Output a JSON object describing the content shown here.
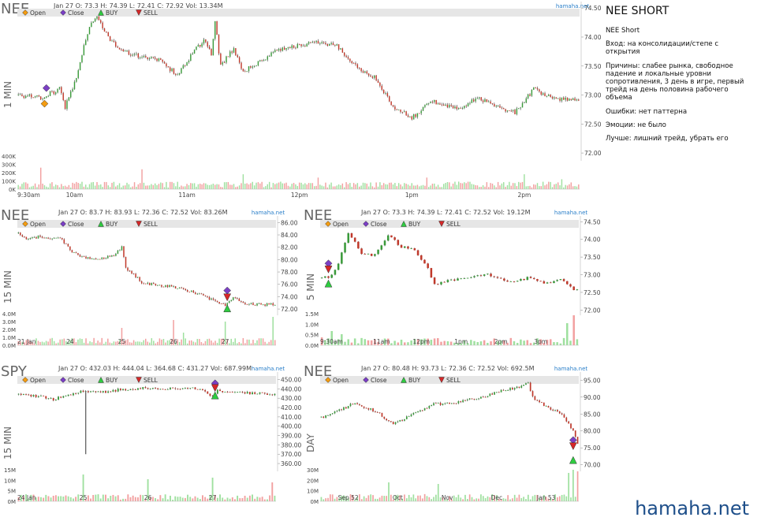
{
  "watermark": "hamaha.net",
  "notes": {
    "title": "NEE SHORT",
    "subtitle": "NEE Short",
    "entry": "Вход:  на консолидации/степе с открытия",
    "reasons": "Причины: слабее рынка, свободное падение и локальные уровни сопротивления, 3 день в игре, первый трейд на день половина рабочего объема",
    "errors": "Ошибки:  нет паттерна",
    "emotions": "Эмоции: не было",
    "better": "Лучше: лишний трейд, убрать его"
  },
  "colors": {
    "up": "#3a9a3a",
    "down": "#c0392b",
    "wick": "#333333",
    "vol_up": "#9fe09f",
    "vol_down": "#f2a0a0",
    "legend_bg": "#e6e6e6",
    "brand": "#2a7fc9",
    "open": "#f39c12",
    "close": "#7b3fc4",
    "buy": "#2ecc40",
    "sell": "#d62728"
  },
  "chart_data": [
    {
      "id": "nee-1min",
      "type": "candlestick",
      "symbol": "NEE",
      "timeframe": "1 MIN",
      "info": "Jan 27 O: 73.3 H: 74.39 L: 72.41 C: 72.92    Vol: 13.34M",
      "brand": "hamaha.net",
      "legend": [
        "Open",
        "Close",
        "BUY",
        "SELL"
      ],
      "y_ticks": [
        "74.50",
        "74.00",
        "73.50",
        "73.00",
        "72.50",
        "72.00"
      ],
      "ylim": [
        71.92,
        74.53
      ],
      "vol_ticks": [
        "400K",
        "300K",
        "200K",
        "100K",
        "0K"
      ],
      "vol_max": 400000,
      "x_ticks": [
        [
          "9:30am",
          0
        ],
        [
          "10am",
          30
        ],
        [
          "11am",
          90
        ],
        [
          "12pm",
          150
        ],
        [
          "1pm",
          210
        ],
        [
          "2pm",
          270
        ]
      ],
      "n": 300,
      "path": [
        [
          0,
          73.0
        ],
        [
          12,
          72.95
        ],
        [
          22,
          73.1
        ],
        [
          25,
          72.8
        ],
        [
          30,
          73.2
        ],
        [
          38,
          74.2
        ],
        [
          42,
          74.35
        ],
        [
          50,
          73.9
        ],
        [
          60,
          73.7
        ],
        [
          75,
          73.6
        ],
        [
          85,
          73.35
        ],
        [
          95,
          73.8
        ],
        [
          100,
          73.95
        ],
        [
          103,
          73.7
        ],
        [
          105,
          74.25
        ],
        [
          108,
          73.5
        ],
        [
          115,
          73.8
        ],
        [
          120,
          73.4
        ],
        [
          130,
          73.6
        ],
        [
          140,
          73.8
        ],
        [
          160,
          73.9
        ],
        [
          170,
          73.85
        ],
        [
          180,
          73.5
        ],
        [
          190,
          73.3
        ],
        [
          200,
          72.8
        ],
        [
          210,
          72.6
        ],
        [
          220,
          72.9
        ],
        [
          235,
          72.75
        ],
        [
          245,
          72.95
        ],
        [
          255,
          72.8
        ],
        [
          265,
          72.7
        ],
        [
          275,
          73.1
        ],
        [
          285,
          72.95
        ],
        [
          300,
          72.9
        ]
      ],
      "vol_spikes": [
        [
          12,
          0.65
        ],
        [
          66,
          0.6
        ],
        [
          120,
          0.45
        ],
        [
          160,
          0.35
        ],
        [
          218,
          0.35
        ],
        [
          270,
          0.45
        ],
        [
          290,
          0.3
        ]
      ],
      "markers": [
        {
          "type": "Close",
          "i": 15,
          "y": 73.12
        },
        {
          "type": "Open",
          "i": 14,
          "y": 72.85
        }
      ]
    },
    {
      "id": "nee-15min",
      "type": "candlestick",
      "symbol": "NEE",
      "timeframe": "15 MIN",
      "info": "Jan 27 O: 83.7 H: 83.93 L: 72.36 C: 72.52    Vol: 83.26M",
      "brand": "hamaha.net",
      "legend": [
        "Open",
        "Close",
        "BUY",
        "SELL"
      ],
      "y_ticks": [
        "86.00",
        "84.00",
        "82.00",
        "80.00",
        "78.00",
        "76.00",
        "74.00",
        "72.00"
      ],
      "ylim": [
        71.5,
        86.3
      ],
      "vol_ticks": [
        "4.0M",
        "3.0M",
        "2.0M",
        "1.0M",
        "0.0M"
      ],
      "vol_max": 4000000,
      "x_ticks": [
        [
          "21 Jan",
          0
        ],
        [
          "24",
          26
        ],
        [
          "25",
          52
        ],
        [
          "26",
          78
        ],
        [
          "27",
          104
        ]
      ],
      "n": 130,
      "path": [
        [
          0,
          84.3
        ],
        [
          5,
          83.2
        ],
        [
          10,
          83.7
        ],
        [
          22,
          83.3
        ],
        [
          26,
          81.5
        ],
        [
          32,
          80.4
        ],
        [
          40,
          80.2
        ],
        [
          48,
          80.6
        ],
        [
          52,
          82.0
        ],
        [
          54,
          78.5
        ],
        [
          60,
          77.0
        ],
        [
          62,
          76.2
        ],
        [
          78,
          75.6
        ],
        [
          90,
          74.5
        ],
        [
          100,
          73.2
        ],
        [
          104,
          72.6
        ],
        [
          108,
          74.0
        ],
        [
          115,
          72.8
        ],
        [
          130,
          72.7
        ]
      ],
      "vol_spikes": [
        [
          52,
          0.55
        ],
        [
          78,
          0.8
        ],
        [
          104,
          0.75
        ],
        [
          128,
          0.9
        ],
        [
          83,
          0.4
        ]
      ],
      "markers": [
        {
          "type": "Close",
          "i": 105,
          "y": 75.0
        },
        {
          "type": "SELL",
          "i": 105,
          "y": 73.9
        },
        {
          "type": "BUY",
          "i": 105,
          "y": 72.1
        }
      ]
    },
    {
      "id": "nee-5min",
      "type": "candlestick",
      "symbol": "NEE",
      "timeframe": "5 MIN",
      "info": "Jan 27 O: 73.3 H: 74.39 L: 72.41 C: 72.52    Vol: 19.12M",
      "brand": "hamaha.net",
      "legend": [
        "Open",
        "Close",
        "BUY",
        "SELL"
      ],
      "y_ticks": [
        "74.50",
        "74.00",
        "73.50",
        "73.00",
        "72.50",
        "72.00"
      ],
      "ylim": [
        71.94,
        74.53
      ],
      "vol_ticks": [
        "1.5M",
        "1.0M",
        "0.5M",
        "0.0M"
      ],
      "vol_max": 1500000,
      "x_ticks": [
        [
          "9:30am",
          0
        ],
        [
          "11am",
          18
        ],
        [
          "12pm",
          30
        ],
        [
          "1pm",
          42
        ],
        [
          "2pm",
          54
        ],
        [
          "3pm",
          66
        ]
      ],
      "n": 78,
      "path": [
        [
          0,
          72.9
        ],
        [
          2,
          72.95
        ],
        [
          4,
          73.1
        ],
        [
          6,
          73.6
        ],
        [
          8,
          74.2
        ],
        [
          12,
          73.6
        ],
        [
          16,
          73.55
        ],
        [
          20,
          74.1
        ],
        [
          24,
          73.8
        ],
        [
          28,
          73.7
        ],
        [
          32,
          73.2
        ],
        [
          34,
          72.7
        ],
        [
          38,
          72.85
        ],
        [
          44,
          72.9
        ],
        [
          50,
          73.0
        ],
        [
          56,
          72.8
        ],
        [
          62,
          72.9
        ],
        [
          68,
          72.75
        ],
        [
          72,
          72.9
        ],
        [
          76,
          72.6
        ]
      ],
      "vol_spikes": [
        [
          0,
          0.25
        ],
        [
          3,
          0.45
        ],
        [
          6,
          0.35
        ],
        [
          74,
          0.7
        ],
        [
          76,
          0.95
        ]
      ],
      "markers": [
        {
          "type": "Close",
          "i": 2,
          "y": 73.32
        },
        {
          "type": "SELL",
          "i": 2,
          "y": 73.15
        },
        {
          "type": "BUY",
          "i": 2,
          "y": 72.75
        }
      ]
    },
    {
      "id": "spy-15min",
      "type": "candlestick",
      "symbol": "SPY",
      "timeframe": "15 MIN",
      "info": "Jan 27 O: 432.03 H: 444.04 L: 364.68 C: 431.27    Vol: 687.99M",
      "brand": "hamaha.net",
      "legend": [
        "Open",
        "Close",
        "BUY",
        "SELL"
      ],
      "y_ticks": [
        "450.00",
        "440.00",
        "430.00",
        "420.00",
        "410.00",
        "400.00",
        "390.00",
        "380.00",
        "370.00",
        "360.00"
      ],
      "ylim": [
        355,
        453
      ],
      "vol_ticks": [
        "15M",
        "10M",
        "5M",
        "0M"
      ],
      "vol_max": 15000000,
      "x_ticks": [
        [
          "24 Jan",
          0
        ],
        [
          "25",
          26
        ],
        [
          "26",
          52
        ],
        [
          "27",
          78
        ]
      ],
      "n": 104,
      "path": [
        [
          0,
          434
        ],
        [
          8,
          432
        ],
        [
          14,
          429
        ],
        [
          20,
          434
        ],
        [
          26,
          438
        ],
        [
          32,
          436
        ],
        [
          40,
          439
        ],
        [
          50,
          441
        ],
        [
          60,
          440
        ],
        [
          70,
          442
        ],
        [
          76,
          436
        ],
        [
          78,
          432
        ],
        [
          80,
          438
        ],
        [
          90,
          436
        ],
        [
          104,
          434
        ]
      ],
      "vol_spikes": [
        [
          26,
          0.85
        ],
        [
          52,
          0.7
        ],
        [
          78,
          0.75
        ],
        [
          102,
          0.6
        ]
      ],
      "outlier": {
        "i": 27,
        "low": 370
      },
      "markers": [
        {
          "type": "Close",
          "i": 79,
          "y": 446
        },
        {
          "type": "SELL",
          "i": 79,
          "y": 441
        },
        {
          "type": "BUY",
          "i": 79,
          "y": 433
        }
      ]
    },
    {
      "id": "nee-day",
      "type": "candlestick",
      "symbol": "NEE",
      "timeframe": "DAY",
      "info": "Jan 27 O: 80.48 H: 93.73 L: 72.36 C: 72.52    Vol: 692.5M",
      "brand": "hamaha.net",
      "legend": [
        "Open",
        "Close",
        "BUY",
        "SELL"
      ],
      "y_ticks": [
        "95.00",
        "90.00",
        "85.00",
        "80.00",
        "75.00",
        "70.00"
      ],
      "ylim": [
        69,
        96
      ],
      "vol_ticks": [
        "30M",
        "20M",
        "10M",
        "0M"
      ],
      "vol_max": 30000000,
      "x_ticks": [
        [
          "Sep 52",
          12
        ],
        [
          "Oct",
          34
        ],
        [
          "Nov",
          56
        ],
        [
          "Dec",
          78
        ],
        [
          "Jan 53",
          100
        ]
      ],
      "n": 115,
      "path": [
        [
          0,
          84
        ],
        [
          8,
          86
        ],
        [
          14,
          88
        ],
        [
          20,
          87
        ],
        [
          26,
          85
        ],
        [
          32,
          82
        ],
        [
          38,
          84
        ],
        [
          44,
          86
        ],
        [
          50,
          88
        ],
        [
          56,
          88
        ],
        [
          64,
          89
        ],
        [
          72,
          90
        ],
        [
          80,
          92
        ],
        [
          88,
          93
        ],
        [
          92,
          94
        ],
        [
          94,
          90
        ],
        [
          98,
          88
        ],
        [
          104,
          86
        ],
        [
          108,
          84
        ],
        [
          112,
          80
        ],
        [
          115,
          74
        ]
      ],
      "vol_spikes": [
        [
          30,
          0.6
        ],
        [
          52,
          0.55
        ],
        [
          110,
          0.9
        ],
        [
          112,
          1.0
        ],
        [
          114,
          0.95
        ]
      ],
      "markers": [
        {
          "type": "Close",
          "i": 112,
          "y": 77.3
        },
        {
          "type": "SELL",
          "i": 112,
          "y": 75.5
        },
        {
          "type": "BUY",
          "i": 112,
          "y": 71.4
        }
      ]
    }
  ]
}
